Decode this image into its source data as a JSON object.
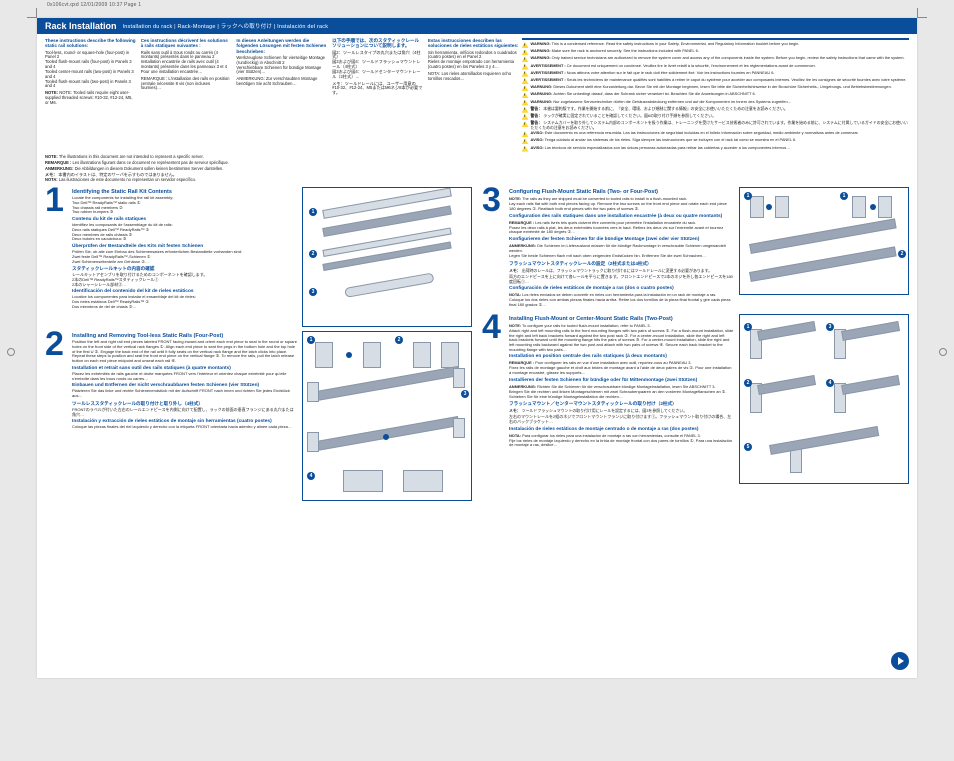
{
  "meta": "0x106cvt.qxd  12/01/2009  10:37  Page 1",
  "title": "Rack Installation",
  "subtitle": "Installation du rack | Rack-Montage | ラックへの取り付け | Instalación del rack",
  "intro": {
    "en": {
      "lead": "These instructions describe the following static rail solutions:",
      "body": "Tool-less, round- or square-hole (four-post) in Panel 2\nTooled flush-mount rails (four-post) in Panels 3 and 4\nTooled center-mount rails (two-post) in Panels 3 and 4\nTooled flush-mount rails (two-post) in Panels 3 and 4",
      "note": "NOTE: Tooled rails require eight user-supplied threaded screws: #10-32, #12-24, M5, or M6."
    },
    "fr": {
      "lead": "Ces instructions décrivent les solutions à rails statiques suivantes :",
      "body": "Rails sans outil à trous ronds ou carrés (4 montants) présentés dans le panneau 2\nInstallation encastrée de rails avec outil (4 montants) présentée dans les panneaux 3 et 4\nPour une installation encastrée…",
      "note": "REMARQUE : L'installation des rails en position centrale nécessite 8 vis (non incluses fournies)…"
    },
    "de": {
      "lead": "In diesen Anleitungen werden die folgenden Lösungen mit festen Schienen beschrieben:",
      "body": "Werkzeuglose Schienen für vierseitige Montage (rund/eckig) in Abschnitt 2\nVerschiebbare Schienen für bündige Montage (vier Stützen)…",
      "note": "ANMERKUNG: Zur verschraubten Montage benötigen Sie acht Schrauben…"
    },
    "jp": {
      "lead": "以下の手順では、次のスタティックレールソリューションについて説明します。",
      "body": "図2：ツールレスタイプの丸穴または角穴（4柱式）\n図3および図4：ツールドフラッシュマウントレール（4柱式）\n図3および図4：ツールドセンターマウントレール（2柱式）…",
      "note": "メモ：ツールドレールには、ユーザー用意の#10-32、#12-24、M5またはM6ネジ8本が必要です。"
    },
    "es": {
      "lead": "Estas instrucciones describen las soluciones de rieles estáticos siguientes:",
      "body": "Sin herramienta, orificios redondos o cuadrados (cuatro postes) en el Panel 2\nRieles de montaje empotrado con herramienta (cuatro postes) en los Paneles 3 y 4…",
      "note": "NOTA: Los rieles atornillados requieren ocho tornillos roscados…"
    }
  },
  "warnings": [
    {
      "label": "WARNING:",
      "text": "This is a condensed reference. Read the safety instructions in your Safety, Environmental, and Regulatory Information booklet before you begin."
    },
    {
      "label": "WARNING:",
      "text": "Make sure the rack is anchored securely. See the instructions included with PANEL 6."
    },
    {
      "label": "WARNING:",
      "text": "Only trained service technicians are authorized to remove the system cover and access any of the components inside the system. Before you begin, review the safety instructions that came with the system."
    },
    {
      "label": "AVERTISSEMENT :",
      "text": "Ce document est uniquement un condensé. Veuillez lire le livret relatif à la sécurité, l'environnement et les réglementations avant de commencer."
    },
    {
      "label": "AVERTISSEMENT :",
      "text": "Nous attirons votre attention sur le fait que le rack doit être solidement fixé. Voir les instructions fournies en PANNEAU 6."
    },
    {
      "label": "AVERTISSEMENT :",
      "text": "Seuls les techniciens de maintenance qualifiés sont habilités à retirer le capot du système pour accéder aux composants internes. Veuillez lire les consignes de sécurité fournies avec votre système."
    },
    {
      "label": "WARNUNG:",
      "text": "Dieses Dokument stellt eine Kurzanleitung dar. Bevor Sie mit der Montage beginnen, lesen Sie bitte die Sicherheitshinweise in der Broschüre Sicherheits-, Umgebungs- und Betriebsbestimmungen."
    },
    {
      "label": "WARNUNG:",
      "text": "Achten Sie unbedingt darauf, dass der Schrank sicher verankert ist. Beachten Sie die Anweisungen in ABSCHNITT 6."
    },
    {
      "label": "WARNUNG:",
      "text": "Nur zugelassene Servicetechniker dürfen die Gehäuseabdeckung entfernen und auf die Komponenten im Innern des Systems zugreifen…"
    },
    {
      "label": "警告：",
      "text": "本書は要約版です。作業を開始する前に、『安全、環境、および規制に関する情報』の安全にお使いいただくための注意をお読みください。"
    },
    {
      "label": "警告：",
      "text": "ラックが確実に固定されていることを確認してください。図6の取り付け手順を参照してください。"
    },
    {
      "label": "警告：",
      "text": "システムカバーを取り外してシステム内部のコンポーネントを扱う作業は、トレーニングを受けたサービス技術者のみに許可されています。作業を始める前に、システムに付属しているガイドの安全にお使いいただくための注意をお読みください。"
    },
    {
      "label": "AVISO:",
      "text": "Este documento es una referencia resumida. Lea las instrucciones de seguridad incluidas en el folleto Información sobre seguridad, medio ambiente y normativas antes de comenzar."
    },
    {
      "label": "AVISO:",
      "text": "Tenga cuidado al anclar los sistemas de los rieles. Siga siempre las instrucciones que se incluyen con el rack tal como se muestra en el PANEL 6."
    },
    {
      "label": "AVISO:",
      "text": "Los técnicos de servicio especializados son las únicas personas autorizadas para retirar las cubiertas y acceder a los componentes internos…"
    }
  ],
  "midnotes": [
    {
      "label": "NOTE:",
      "text": "The illustrations in this document are not intended to represent a specific server."
    },
    {
      "label": "REMARQUE :",
      "text": "Les illustrations figurant dans ce document ne représentent pas de serveur spécifique."
    },
    {
      "label": "ANMERKUNG:",
      "text": "Die Abbildungen in diesem Dokument sollen keinen bestimmten Server darstellen."
    },
    {
      "label": "メモ：",
      "text": "本書内のイラストは、特定のサーバを示すものではありません。"
    },
    {
      "label": "NOTA:",
      "text": "Las ilustraciones de este documento no representan un servidor específico."
    }
  ],
  "steps": {
    "s1": {
      "num": "1",
      "h_en": "Identifying the Static Rail Kit Contents",
      "t_en": "Locate the components for installing the rail kit assembly:\nTwo Dell™ ReadyRails™ static rails ①\nTwo chassis rail members ②\nTwo rubber bumpers ③",
      "h_fr": "Contenu du kit de rails statiques",
      "t_fr": "Identifiez les composants de l'assemblage du kit de rails:\nDeux rails statiques Dell™ ReadyRails™ ①\nDeux membres de rails châssis ②\nDeux butoirs en caoutchouc ③",
      "h_de": "Überprüfen der Bestandteile des Kits mit festen Schienen",
      "t_de": "Prüfen Sie, ob alle zum Einbau des Schienensatzes erforderlichen Bestandteile vorhanden sind:\nZwei feste Dell™ ReadyRails™-Schienen ①\nZwei Schienenseitenteile am Gehäuse ②…",
      "h_jp": "スタティックレールキットの内容の確認",
      "t_jp": "レールキットアセンブリを取り付けるためのコンポーネントを確認します。\n2本のDell™ ReadyRails™スタティックレール①\n2本のシャーシレール部材②…",
      "h_es": "Identificación del contenido del kit de rieles estáticos",
      "t_es": "Localice los componentes para instalar el ensamblaje del kit de rieles:\nDos rieles estáticos Dell™ ReadyRails™ ①\nDos miembros de riel de chasis ②…"
    },
    "s2": {
      "num": "2",
      "h_en": "Installing and Removing Tool-less Static Rails (Four-Post)",
      "t_en": "Position the left and right rail end pieces labeled FRONT facing inward and orient each end piece to seat in the round or square holes on the front side of the vertical rack flanges ①. Align each end piece to seat the pegs in the bottom hole and the top hole of the first U ②. Engage the back end of the rail until it fully seats on the vertical rack flange and the latch clicks into place. Repeat these steps to position and seat the front end piece on the vertical flange ③. To remove the rails, pull the latch release button on each end piece midpoint and unseat each rail ④.",
      "h_fr": "Installation et retrait sans outil des rails statiques (à quatre montants)",
      "t_fr": "Placez les extrémités de rails gauche et droite marquées FRONT vers l'intérieur et orientez chaque extrémité pour qu'elle s'emboîte dans les trous ronds ou carrés…",
      "h_de": "Einbauen und Entfernen der nicht verschraubbaren festen Schienen (vier Stützen)",
      "t_de": "Platzieren Sie das linke und rechte Schienenendstück mit der Aufschrift FRONT nach innen und richten Sie jedes Endstück aus…",
      "h_jp": "ツールレススタティックレールの取り付けと取り外し（4柱式）",
      "t_jp": "FRONTのラベルが付いた左右のレールエンドピースを内側に向けて配置し、ラックの前面の垂直フランジにある丸穴または角穴…",
      "h_es": "Instalación y extracción de rieles estáticos de montaje sin herramientas (cuatro postes)",
      "t_es": "Coloque las piezas finales del riel izquierdo y derecho con la etiqueta FRONT orientada hacia adentro y alinee cada pieza…"
    },
    "s3": {
      "num": "3",
      "h_en": "Configuring Flush-Mount Static Rails (Two- or Four-Post)",
      "t_en": "",
      "n_en_label": "NOTE:",
      "n_en_text": "The rails as they are shipped must be converted to tooled rails to install in a flush-mounted rack.",
      "t_en2": "Lay each rails flat with both end pieces facing up. Remove the two screws on the front end piece and rotate each end piece 180 degrees ①. Reattach both end pieces with the two pairs of screws ②.",
      "h_fr": "Configuration des rails statiques dans une installation encastrée (à deux ou quatre montants)",
      "n_fr_label": "REMARQUE :",
      "n_fr_text": "Les rails livrés tels quels doivent être convertis pour permettre l'installation encastrée du rack.",
      "t_fr": "Posez les deux rails à plat, les deux extrémités tournées vers le haut. Retirez les deux vis sur l'extrémité avant et tournez chaque extrémité de 180 degrés ①…",
      "h_de": "Konfigurieren der festen Schienen für die bündige Montage (zwei oder vier Stützen)",
      "n_de_label": "ANMERKUNG:",
      "n_de_text": "Die Schienen im Lieferzustand müssen für die bündige Rackmontage in verschraubte Schienen umgewandelt werden.",
      "t_de": "Legen Sie beide Schienen flach mit nach oben zeigenden Endstücken hin. Entfernen Sie die zwei Schrauben…",
      "h_jp": "フラッシュマウントスタティックレールの設定（2柱式または4柱式）",
      "n_jp_label": "メモ：",
      "n_jp_text": "出荷時のレールは、フラッシュマウントラックに取り付けるにはツールドレールに変更する必要があります。",
      "t_jp": "両方のエンドピースを上に向けて各レールを平らに置きます。フロントエンドピースで2本のネジを外し各エンドピースを180度回転①…",
      "h_es": "Configuración de rieles estáticos de montaje a ras (dos o cuatro postes)",
      "n_es_label": "NOTA:",
      "n_es_text": "Los rieles enviados se deben convertir en rieles con herramienta para la instalación en un rack de montaje a ras.",
      "t_es": "Coloque los dos rieles con ambas piezas finales hacia arriba. Retire los dos tornillos de la pieza final frontal y gire cada pieza final 180 grados ①…"
    },
    "s4": {
      "num": "4",
      "h_en": "Installing Flush-Mount or Center-Mount Static Rails (Two-Post)",
      "t_en": "",
      "n_en_label": "NOTE:",
      "n_en_text": "To configure your rails for tooled flush-mount installation, refer to PANEL 3.",
      "t_en2": "Attach right and left mounting rails to the front mounting flanges with two pairs of screws ①. For a flush-mount installation, slide the right and left back brackets forward against the two post rack ②. For a center-mount installation, slide the right and left back brackets forward until the mounting flange hits the pairs of screws ③. For a center-mount installation, slide the right and left mounting rails backward against the two post and attach with two pairs of screws ④. Secure each back bracket to the mounting flange with two pairs…",
      "h_fr": "Installation en position centrale des rails statiques (à deux montants)",
      "n_fr_label": "REMARQUE :",
      "n_fr_text": "Pour configurer les rails en vue d'une installation avec outil, reportez-vous au PANNEAU 3.",
      "t_fr": "Fixez les rails de montage gauche et droit aux brides de montage avant à l'aide de deux paires de vis ①. Pour une installation à montage encastré, glissez les supports…",
      "h_de": "Installieren der festen Schienen für bündige oder für Mittenmontage (zwei Stützen)",
      "n_de_label": "ANMERKUNG:",
      "n_de_text": "Richten Sie die Schienen für die verschraubbare bündige Montageinstallation, lesen Sie ABSCHNITT 3.",
      "t_de": "Bringen Sie die rechten und linken Montageschienen mit zwei Schraubenpaaren an den vorderen Montageflanschen an ①. Schieben Sie für eine bündige Montageinstallation die rechten…",
      "h_jp": "フラッシュマウント／センターマウントスタティックレールの取り付け（2柱式）",
      "n_jp_label": "メモ：",
      "n_jp_text": "ツールドフラッシュマウントの取り付け用にレールを設定するには、図3を参照してください。",
      "t_jp": "左右のマウントレールを2組のネジでフロントマウントフランジに取り付けます①。フラッシュマウント取り付けの場合、左右のバックブラケット…",
      "h_es": "Instalación de rieles estáticos de montaje centrado o de montaje a ras (dos postes)",
      "n_es_label": "NOTA:",
      "n_es_text": "Para configurar los rieles para una instalación de montaje a ras con herramientas, consulte el PANEL 3.",
      "t_es": "Fije los rieles de montaje izquierdo y derecho en la brida de montaje frontal con dos pares de tornillos ①. Para una instalación de montaje a ras, deslice…"
    }
  }
}
